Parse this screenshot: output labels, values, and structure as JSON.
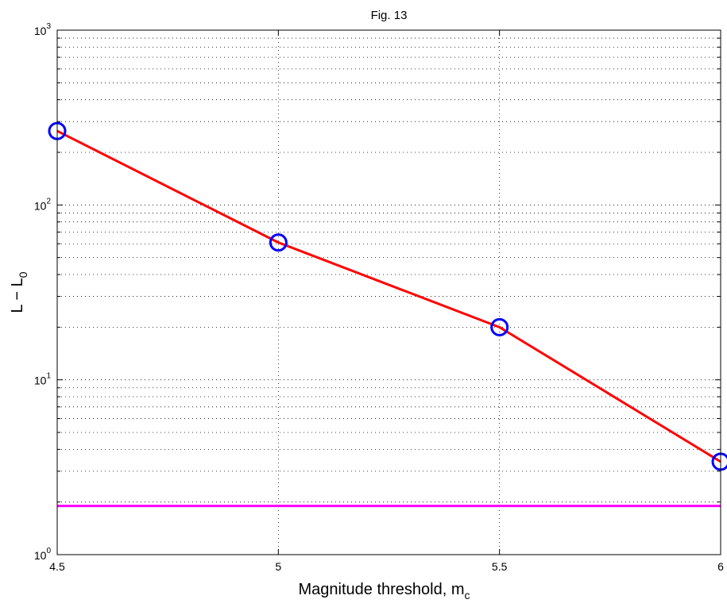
{
  "chart_data": {
    "type": "line",
    "title": "Fig. 13",
    "xlabel": {
      "main": "Magnitude threshold, m",
      "sub": "c"
    },
    "ylabel": {
      "main": "L − L",
      "sub": "0"
    },
    "x_ticks": [
      4.5,
      5,
      5.5,
      6
    ],
    "x_tick_labels": [
      "4.5",
      "5",
      "5.5",
      "6"
    ],
    "xlim": [
      4.5,
      6
    ],
    "y_scale": "log",
    "ylim": [
      1,
      1000
    ],
    "y_ticks": [
      1,
      10,
      100,
      1000
    ],
    "y_tick_labels": [
      {
        "base": "10",
        "exp": "0"
      },
      {
        "base": "10",
        "exp": "1"
      },
      {
        "base": "10",
        "exp": "2"
      },
      {
        "base": "10",
        "exp": "3"
      }
    ],
    "grid": true,
    "series": [
      {
        "x": [
          4.5,
          5,
          5.5,
          6
        ],
        "y": [
          265,
          61,
          20,
          3.4
        ],
        "line_color": "#ff0000",
        "marker": "circle",
        "marker_color": "#0000ff"
      }
    ],
    "reference_lines": [
      {
        "y": 1.9,
        "color": "#ff00ff"
      }
    ]
  }
}
